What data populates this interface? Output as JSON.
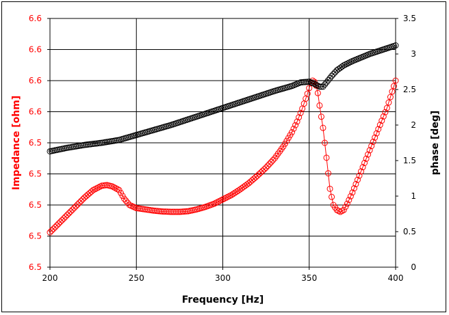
{
  "chart_data": {
    "type": "scatter",
    "xlabel": "Frequency [Hz]",
    "ylabel_left": "Impedance [ohm]",
    "ylabel_right": "phase [deg]",
    "xlim": [
      200,
      400
    ],
    "ylim_left": [
      6.45,
      6.65
    ],
    "ylim_right": [
      0,
      3.5
    ],
    "x_ticks": [
      "200",
      "250",
      "300",
      "350",
      "400"
    ],
    "y_left_ticks": [
      "6.5",
      "6.5",
      "6.5",
      "6.5",
      "6.5",
      "6.6",
      "6.6",
      "6.6",
      "6.6"
    ],
    "y_right_ticks": [
      "0",
      "0.5",
      "1",
      "1.5",
      "2",
      "2.5",
      "3",
      "3.5"
    ],
    "grid": true,
    "series": [
      {
        "axis": "left",
        "color": "#ff0000",
        "marker": "circle",
        "x": [
          200,
          205,
          210,
          215,
          220,
          225,
          230,
          233,
          236,
          240,
          243,
          246,
          250,
          255,
          260,
          265,
          270,
          275,
          280,
          285,
          290,
          295,
          300,
          305,
          310,
          315,
          320,
          325,
          330,
          335,
          340,
          343,
          346,
          349,
          351,
          352,
          353,
          354,
          355,
          356,
          358,
          360,
          362,
          364,
          366,
          368,
          370,
          372,
          375,
          380,
          385,
          390,
          395,
          400
        ],
        "y": [
          6.478,
          6.485,
          6.492,
          6.499,
          6.506,
          6.512,
          6.5155,
          6.516,
          6.515,
          6.512,
          6.505,
          6.5,
          6.4975,
          6.4965,
          6.4955,
          6.4948,
          6.4945,
          6.4945,
          6.495,
          6.4965,
          6.4985,
          6.501,
          6.5045,
          6.508,
          6.5125,
          6.5175,
          6.5235,
          6.53,
          6.5375,
          6.547,
          6.5585,
          6.567,
          6.5775,
          6.5895,
          6.5985,
          6.6,
          6.599,
          6.596,
          6.59,
          6.58,
          6.562,
          6.538,
          6.513,
          6.5,
          6.496,
          6.4945,
          6.496,
          6.501,
          6.51,
          6.527,
          6.544,
          6.561,
          6.578,
          6.6
        ]
      },
      {
        "axis": "right",
        "color": "#000000",
        "marker": "circle",
        "x": [
          200,
          210,
          220,
          230,
          240,
          250,
          260,
          270,
          280,
          290,
          300,
          310,
          320,
          330,
          340,
          345,
          350,
          353,
          356,
          358,
          360,
          363,
          366,
          370,
          375,
          380,
          385,
          390,
          395,
          400
        ],
        "y": [
          1.63,
          1.68,
          1.72,
          1.75,
          1.79,
          1.86,
          1.93,
          2.0,
          2.08,
          2.16,
          2.24,
          2.32,
          2.4,
          2.48,
          2.55,
          2.6,
          2.61,
          2.58,
          2.54,
          2.54,
          2.6,
          2.69,
          2.77,
          2.84,
          2.9,
          2.95,
          3.0,
          3.04,
          3.08,
          3.12
        ]
      }
    ]
  }
}
